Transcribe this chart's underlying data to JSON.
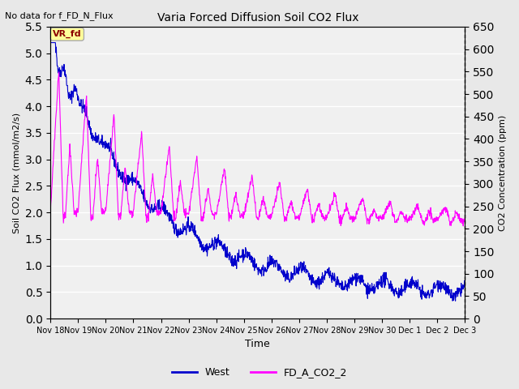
{
  "title": "Varia Forced Diffusion Soil CO2 Flux",
  "top_left_text": "No data for f_FD_N_Flux",
  "vr_fd_label": "VR_fd",
  "xlabel": "Time",
  "ylabel_left": "Soil CO2 Flux (mmol/m2/s)",
  "ylabel_right": "CO2 Concentration (ppm)",
  "ylim_left": [
    0.0,
    5.5
  ],
  "ylim_right": [
    0,
    650
  ],
  "yticks_left": [
    0.0,
    0.5,
    1.0,
    1.5,
    2.0,
    2.5,
    3.0,
    3.5,
    4.0,
    4.5,
    5.0,
    5.5
  ],
  "yticks_right": [
    0,
    50,
    100,
    150,
    200,
    250,
    300,
    350,
    400,
    450,
    500,
    550,
    600,
    650
  ],
  "xtick_positions": [
    0,
    1,
    2,
    3,
    4,
    5,
    6,
    7,
    8,
    9,
    10,
    11,
    12,
    13,
    14,
    15
  ],
  "xtick_labels": [
    "Nov 18",
    "Nov 19",
    "Nov 20",
    "Nov 21",
    "Nov 22",
    "Nov 23",
    "Nov 24",
    "Nov 25",
    "Nov 26",
    "Nov 27",
    "Nov 28",
    "Nov 29",
    "Nov 30",
    "Dec 1",
    "Dec 2",
    "Dec 3"
  ],
  "line_west_color": "#0000CC",
  "line_co2_color": "#FF00FF",
  "legend_labels": [
    "West",
    "FD_A_CO2_2"
  ],
  "background_color": "#E8E8E8",
  "plot_bg_color": "#F0F0F0",
  "grid_color": "#FFFFFF",
  "n_days": 15
}
